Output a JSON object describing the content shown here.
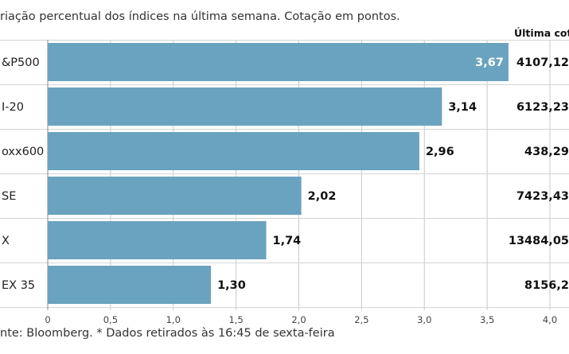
{
  "header": {
    "subtitle": "riação percentual dos índices na última semana. Cotação em pontos.",
    "last_column": "Última cotaç"
  },
  "footer": {
    "source": "nte: Bloomberg.  * Dados retirados às 16:45 de sexta-feira"
  },
  "colors": {
    "bar": "#6aa3bf",
    "gridline": "#c8c8c8",
    "separator": "#d4d4d4",
    "value_inside": "#ffffff",
    "value_outside": "#111111"
  },
  "chart_data": {
    "type": "bar",
    "orientation": "horizontal",
    "categories": [
      "&P500",
      "I-20",
      "oxx600",
      "SE",
      "X",
      "EX 35"
    ],
    "values": [
      3.67,
      3.14,
      2.96,
      2.02,
      1.74,
      1.3
    ],
    "value_labels": [
      "3,67",
      "3,14",
      "2,96",
      "2,02",
      "1,74",
      "1,30"
    ],
    "last_quotes": [
      "4107,12",
      "6123,23",
      "438,29",
      "7423,43",
      "13484,05",
      "8156,2"
    ],
    "xlim": [
      0,
      4.0
    ],
    "ticks": [
      {
        "value": 0,
        "label": "0"
      },
      {
        "value": 0.5,
        "label": "0,5"
      },
      {
        "value": 1.0,
        "label": "1,0"
      },
      {
        "value": 1.5,
        "label": "1,5"
      },
      {
        "value": 2.0,
        "label": "2,0"
      },
      {
        "value": 2.5,
        "label": "2,5"
      },
      {
        "value": 3.0,
        "label": "3,0"
      },
      {
        "value": 3.5,
        "label": "3,5"
      },
      {
        "value": 4.0,
        "label": "4,0"
      }
    ],
    "grid": true
  }
}
